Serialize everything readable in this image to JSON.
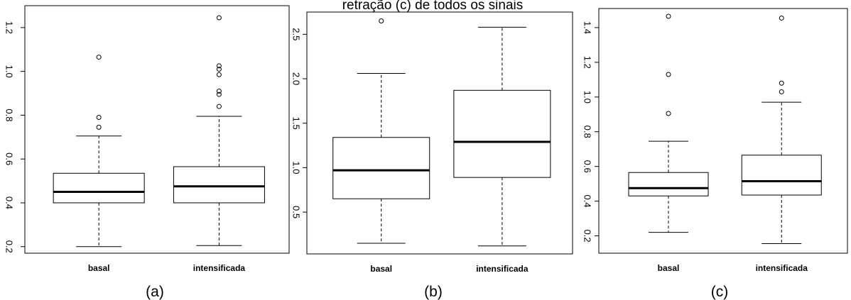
{
  "figure_title": "retração (c) de todos os sinais",
  "chart_data": [
    {
      "type": "box",
      "panel_label": "(a)",
      "categories": [
        "basal",
        "intensificada"
      ],
      "ylim": [
        0.17,
        1.3
      ],
      "yticks": [
        0.2,
        0.4,
        0.6,
        0.8,
        1.0,
        1.2
      ],
      "ytick_labels": [
        "0.2",
        "0.4",
        "0.6",
        "0.8",
        "1.0",
        "1.2"
      ],
      "boxes": [
        {
          "whisker_low": 0.2,
          "q1": 0.4,
          "median": 0.45,
          "q3": 0.535,
          "whisker_high": 0.705,
          "outliers": [
            0.745,
            0.79,
            1.065
          ]
        },
        {
          "whisker_low": 0.205,
          "q1": 0.4,
          "median": 0.475,
          "q3": 0.565,
          "whisker_high": 0.795,
          "outliers": [
            0.84,
            0.895,
            0.91,
            0.985,
            1.01,
            1.025,
            1.245
          ]
        }
      ]
    },
    {
      "type": "box",
      "panel_label": "(b)",
      "categories": [
        "basal",
        "intensificada"
      ],
      "ylim": [
        0.03,
        2.75
      ],
      "yticks": [
        0.5,
        1.0,
        1.5,
        2.0,
        2.5
      ],
      "ytick_labels": [
        "0.5",
        "1.0",
        "1.5",
        "2.0",
        "2.5"
      ],
      "boxes": [
        {
          "whisker_low": 0.15,
          "q1": 0.65,
          "median": 0.97,
          "q3": 1.34,
          "whisker_high": 2.06,
          "outliers": [
            2.65
          ]
        },
        {
          "whisker_low": 0.12,
          "q1": 0.89,
          "median": 1.29,
          "q3": 1.87,
          "whisker_high": 2.58,
          "outliers": []
        }
      ]
    },
    {
      "type": "box",
      "panel_label": "(c)",
      "categories": [
        "basal",
        "intensificada"
      ],
      "ylim": [
        0.1,
        1.51
      ],
      "yticks": [
        0.2,
        0.4,
        0.6,
        0.8,
        1.0,
        1.2,
        1.4
      ],
      "ytick_labels": [
        "0.2",
        "0.4",
        "0.6",
        "0.8",
        "1.0",
        "1.2",
        "1.4"
      ],
      "boxes": [
        {
          "whisker_low": 0.22,
          "q1": 0.43,
          "median": 0.475,
          "q3": 0.565,
          "whisker_high": 0.745,
          "outliers": [
            0.905,
            1.13,
            1.465
          ]
        },
        {
          "whisker_low": 0.155,
          "q1": 0.435,
          "median": 0.515,
          "q3": 0.665,
          "whisker_high": 0.97,
          "outliers": [
            1.03,
            1.08,
            1.455
          ]
        }
      ]
    }
  ]
}
